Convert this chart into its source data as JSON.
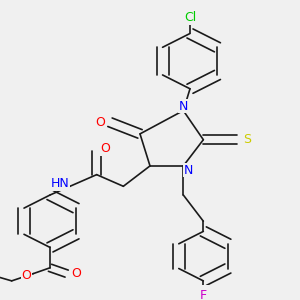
{
  "bg_color": "#f0f0f0",
  "bond_color": "#1a1a1a",
  "atoms": {
    "Cl": {
      "color": "#00cc00",
      "fontsize": 9
    },
    "O": {
      "color": "#ff0000",
      "fontsize": 9
    },
    "N": {
      "color": "#0000ff",
      "fontsize": 9
    },
    "S": {
      "color": "#cccc00",
      "fontsize": 9
    },
    "F": {
      "color": "#cc00cc",
      "fontsize": 9
    },
    "H": {
      "color": "#7799bb",
      "fontsize": 9
    },
    "C": {
      "color": "#1a1a1a",
      "fontsize": 9
    }
  },
  "figsize": [
    3.0,
    3.0
  ],
  "dpi": 100
}
